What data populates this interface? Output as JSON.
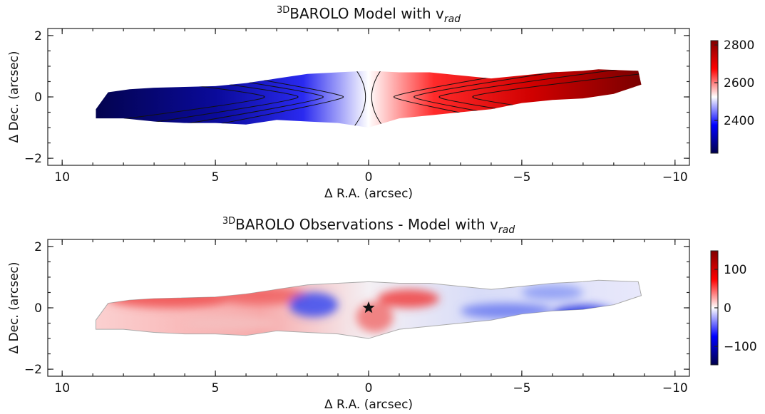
{
  "chart_data": [
    {
      "type": "heatmap",
      "title_super": "3D",
      "title": "BAROLO Model with v",
      "title_sub": "rad",
      "xlabel": "Δ R.A. (arcsec)",
      "ylabel": "Δ Dec. (arcsec)",
      "xlim": [
        10.47,
        -10.47
      ],
      "xticks": [
        10,
        5,
        0,
        {
          "value": -5,
          "label": "−5"
        },
        {
          "value": -10,
          "label": "−10"
        }
      ],
      "ylim": [
        -2.23,
        2.23
      ],
      "yticks": [
        {
          "value": -2,
          "label": "−2"
        },
        0,
        2
      ],
      "colorbar": {
        "colormap": "seismic",
        "lim": [
          2226,
          2823
        ],
        "ticks": [
          2400,
          2600,
          2800
        ]
      }
    },
    {
      "type": "heatmap",
      "title_super": "3D",
      "title": "BAROLO Observations - Model with v",
      "title_sub": "rad",
      "xlabel": "Δ R.A. (arcsec)",
      "ylabel": "Δ Dec. (arcsec)",
      "xlim": [
        10.47,
        -10.47
      ],
      "xticks": [
        10,
        5,
        0,
        {
          "value": -5,
          "label": "−5"
        },
        {
          "value": -10,
          "label": "−10"
        }
      ],
      "ylim": [
        -2.23,
        2.23
      ],
      "yticks": [
        {
          "value": -2,
          "label": "−2"
        },
        0,
        2
      ],
      "colorbar": {
        "colormap": "seismic",
        "lim": [
          -148,
          148
        ],
        "ticks": [
          {
            "value": -100,
            "label": "−100"
          },
          0,
          100
        ]
      },
      "marker": {
        "x": 0,
        "y": 0,
        "symbol": "star"
      }
    }
  ]
}
